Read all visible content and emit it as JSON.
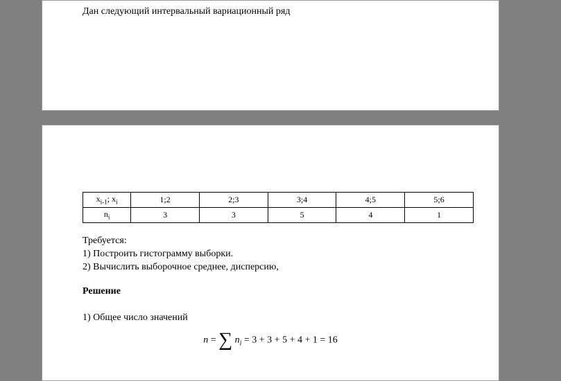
{
  "intro": "Дан следующий интервальный вариационный ряд",
  "table": {
    "row1_header": "xᵢ₋₁; xᵢ",
    "row2_header": "nᵢ",
    "columns": [
      {
        "interval": "1;2",
        "count": "3"
      },
      {
        "interval": "2;3",
        "count": "3"
      },
      {
        "interval": "3;4",
        "count": "5"
      },
      {
        "interval": "4;5",
        "count": "4"
      },
      {
        "interval": "5;6",
        "count": "1"
      }
    ]
  },
  "requirements": {
    "title": "Требуется:",
    "item1": "1) Построить гистограмму выборки.",
    "item2": "2) Вычислить выборочное  среднее, дисперсию,"
  },
  "solution": {
    "header": "Решение",
    "line1": "1) Общее число значений",
    "formula_n": "n",
    "formula_eq1": " = ",
    "formula_sigma": "∑",
    "formula_ni": "n",
    "formula_ni_sub": "i",
    "formula_rest": " = 3 + 3 + 5 + 4 + 1 = 16"
  }
}
